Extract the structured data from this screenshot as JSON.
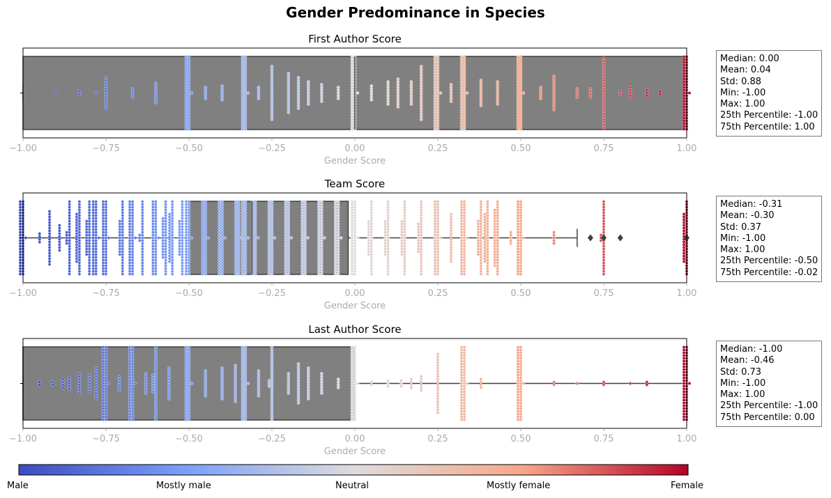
{
  "figure": {
    "title": "Gender Predominance in Species"
  },
  "colorbar": {
    "colors": [
      "#3b4cc0",
      "#7b9ff9",
      "#dddcdc",
      "#f7a889",
      "#b40426"
    ],
    "labels": [
      "Male",
      "Mostly male",
      "Neutral",
      "Mostly female",
      "Female"
    ]
  },
  "chart_data": [
    {
      "type": "box+swarm",
      "title": "First Author Score",
      "xlabel": "Gender Score",
      "xlim": [
        -1.0,
        1.0
      ],
      "xticks": [
        "−1.00",
        "−0.75",
        "−0.50",
        "−0.25",
        "0.00",
        "0.25",
        "0.50",
        "0.75",
        "1.00"
      ],
      "box": {
        "q1": -1.0,
        "median": 0.0,
        "q3": 1.0,
        "whisker_low": -1.0,
        "whisker_high": 1.0,
        "outliers": []
      },
      "stats": [
        "Median: 0.00",
        "Mean: 0.04",
        "Std: 0.88",
        "Min: -1.00",
        "Max: 1.00",
        "25th Percentile: -1.00",
        "75th Percentile: 1.00"
      ],
      "value_columns": [
        {
          "x": -0.9,
          "n": 1
        },
        {
          "x": -0.83,
          "n": 2
        },
        {
          "x": -0.78,
          "n": 1
        },
        {
          "x": -0.75,
          "n": 12
        },
        {
          "x": -0.67,
          "n": 4
        },
        {
          "x": -0.6,
          "n": 8
        },
        {
          "x": -0.5,
          "n": 55
        },
        {
          "x": -0.45,
          "n": 5
        },
        {
          "x": -0.4,
          "n": 6
        },
        {
          "x": -0.33,
          "n": 55
        },
        {
          "x": -0.29,
          "n": 5
        },
        {
          "x": -0.25,
          "n": 20
        },
        {
          "x": -0.2,
          "n": 15
        },
        {
          "x": -0.17,
          "n": 12
        },
        {
          "x": -0.14,
          "n": 9
        },
        {
          "x": -0.1,
          "n": 7
        },
        {
          "x": -0.05,
          "n": 5
        },
        {
          "x": 0.0,
          "n": 55
        },
        {
          "x": 0.05,
          "n": 6
        },
        {
          "x": 0.1,
          "n": 9
        },
        {
          "x": 0.13,
          "n": 11
        },
        {
          "x": 0.17,
          "n": 9
        },
        {
          "x": 0.2,
          "n": 20
        },
        {
          "x": 0.25,
          "n": 55
        },
        {
          "x": 0.29,
          "n": 7
        },
        {
          "x": 0.33,
          "n": 55
        },
        {
          "x": 0.38,
          "n": 10
        },
        {
          "x": 0.43,
          "n": 9
        },
        {
          "x": 0.5,
          "n": 55
        },
        {
          "x": 0.56,
          "n": 5
        },
        {
          "x": 0.6,
          "n": 13
        },
        {
          "x": 0.67,
          "n": 4
        },
        {
          "x": 0.71,
          "n": 4
        },
        {
          "x": 0.75,
          "n": 26
        },
        {
          "x": 0.8,
          "n": 2
        },
        {
          "x": 0.83,
          "n": 5
        },
        {
          "x": 0.88,
          "n": 3
        },
        {
          "x": 0.92,
          "n": 2
        },
        {
          "x": 1.0,
          "n": 55
        }
      ]
    },
    {
      "type": "box+swarm",
      "title": "Team Score",
      "xlabel": "Gender Score",
      "xlim": [
        -1.0,
        1.0
      ],
      "xticks": [
        "−1.00",
        "−0.75",
        "−0.50",
        "−0.25",
        "0.00",
        "0.25",
        "0.50",
        "0.75",
        "1.00"
      ],
      "box": {
        "q1": -0.5,
        "median": -0.31,
        "q3": -0.02,
        "whisker_low": -1.0,
        "whisker_high": 0.67,
        "outliers": [
          0.71,
          0.75,
          0.8,
          1.0
        ]
      },
      "stats": [
        "Median: -0.31",
        "Mean: -0.30",
        "Std: 0.37",
        "Min: -1.00",
        "Max: 1.00",
        "25th Percentile: -0.50",
        "75th Percentile: -0.02"
      ],
      "value_columns": [
        {
          "x": -1.0,
          "n": 55
        },
        {
          "x": -0.95,
          "n": 4
        },
        {
          "x": -0.92,
          "n": 20
        },
        {
          "x": -0.89,
          "n": 10
        },
        {
          "x": -0.86,
          "n": 32
        },
        {
          "x": -0.83,
          "n": 45
        },
        {
          "x": -0.8,
          "n": 40
        },
        {
          "x": -0.78,
          "n": 55
        },
        {
          "x": -0.75,
          "n": 55
        },
        {
          "x": -0.7,
          "n": 40
        },
        {
          "x": -0.67,
          "n": 55
        },
        {
          "x": -0.64,
          "n": 30
        },
        {
          "x": -0.6,
          "n": 55
        },
        {
          "x": -0.57,
          "n": 42
        },
        {
          "x": -0.55,
          "n": 45
        },
        {
          "x": -0.52,
          "n": 40
        },
        {
          "x": -0.5,
          "n": 55
        },
        {
          "x": -0.45,
          "n": 55
        },
        {
          "x": -0.4,
          "n": 55
        },
        {
          "x": -0.35,
          "n": 55
        },
        {
          "x": -0.33,
          "n": 55
        },
        {
          "x": -0.3,
          "n": 55
        },
        {
          "x": -0.25,
          "n": 55
        },
        {
          "x": -0.2,
          "n": 55
        },
        {
          "x": -0.15,
          "n": 55
        },
        {
          "x": -0.1,
          "n": 55
        },
        {
          "x": -0.05,
          "n": 55
        },
        {
          "x": 0.0,
          "n": 55
        },
        {
          "x": 0.05,
          "n": 40
        },
        {
          "x": 0.1,
          "n": 40
        },
        {
          "x": 0.15,
          "n": 40
        },
        {
          "x": 0.2,
          "n": 38
        },
        {
          "x": 0.25,
          "n": 55
        },
        {
          "x": 0.29,
          "n": 18
        },
        {
          "x": 0.33,
          "n": 55
        },
        {
          "x": 0.38,
          "n": 40
        },
        {
          "x": 0.4,
          "n": 45
        },
        {
          "x": 0.43,
          "n": 48
        },
        {
          "x": 0.47,
          "n": 5
        },
        {
          "x": 0.5,
          "n": 55
        },
        {
          "x": 0.6,
          "n": 5
        },
        {
          "x": 0.75,
          "n": 30
        },
        {
          "x": 1.0,
          "n": 45
        }
      ]
    },
    {
      "type": "box+swarm",
      "title": "Last Author Score",
      "xlabel": "Gender Score",
      "xlim": [
        -1.0,
        1.0
      ],
      "xticks": [
        "−1.00",
        "−0.75",
        "−0.50",
        "−0.25",
        "0.00",
        "0.25",
        "0.50",
        "0.75",
        "1.00"
      ],
      "box": {
        "q1": -1.0,
        "median": -1.0,
        "q3": 0.0,
        "whisker_low": -1.0,
        "whisker_high": 1.0,
        "outliers": []
      },
      "stats": [
        "Median: -1.00",
        "Mean: -0.46",
        "Std: 0.73",
        "Min: -1.00",
        "Max: 1.00",
        "25th Percentile: -1.00",
        "75th Percentile: 0.00"
      ],
      "value_columns": [
        {
          "x": -0.95,
          "n": 2
        },
        {
          "x": -0.91,
          "n": 2
        },
        {
          "x": -0.88,
          "n": 4
        },
        {
          "x": -0.86,
          "n": 5
        },
        {
          "x": -0.83,
          "n": 8
        },
        {
          "x": -0.8,
          "n": 7
        },
        {
          "x": -0.78,
          "n": 12
        },
        {
          "x": -0.75,
          "n": 55
        },
        {
          "x": -0.71,
          "n": 6
        },
        {
          "x": -0.67,
          "n": 55
        },
        {
          "x": -0.63,
          "n": 8
        },
        {
          "x": -0.6,
          "n": 34
        },
        {
          "x": -0.56,
          "n": 12
        },
        {
          "x": -0.5,
          "n": 55
        },
        {
          "x": -0.45,
          "n": 10
        },
        {
          "x": -0.4,
          "n": 12
        },
        {
          "x": -0.36,
          "n": 14
        },
        {
          "x": -0.33,
          "n": 55
        },
        {
          "x": -0.29,
          "n": 10
        },
        {
          "x": -0.25,
          "n": 30
        },
        {
          "x": -0.2,
          "n": 8
        },
        {
          "x": -0.17,
          "n": 15
        },
        {
          "x": -0.14,
          "n": 12
        },
        {
          "x": -0.1,
          "n": 8
        },
        {
          "x": -0.05,
          "n": 4
        },
        {
          "x": 0.0,
          "n": 55
        },
        {
          "x": 0.05,
          "n": 2
        },
        {
          "x": 0.1,
          "n": 3
        },
        {
          "x": 0.14,
          "n": 3
        },
        {
          "x": 0.17,
          "n": 4
        },
        {
          "x": 0.2,
          "n": 6
        },
        {
          "x": 0.25,
          "n": 22
        },
        {
          "x": 0.33,
          "n": 55
        },
        {
          "x": 0.38,
          "n": 4
        },
        {
          "x": 0.5,
          "n": 55
        },
        {
          "x": 0.6,
          "n": 2
        },
        {
          "x": 0.67,
          "n": 1
        },
        {
          "x": 0.75,
          "n": 2
        },
        {
          "x": 0.83,
          "n": 1
        },
        {
          "x": 0.88,
          "n": 2
        },
        {
          "x": 1.0,
          "n": 55
        }
      ]
    }
  ]
}
